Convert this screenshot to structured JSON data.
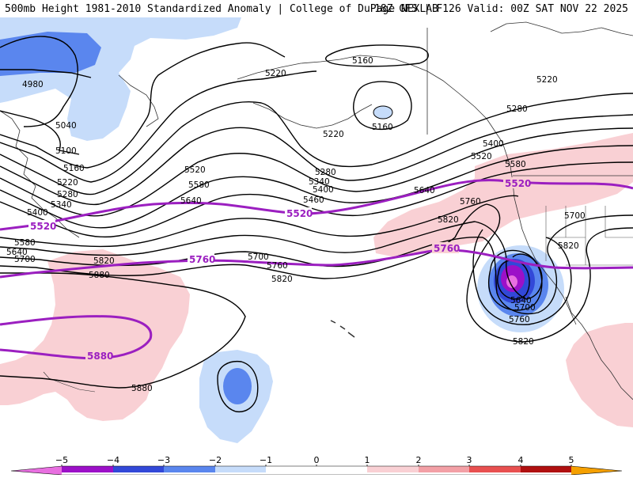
{
  "header": {
    "title": "500mb Height 1981-2010 Standardized Anomaly | College of DuPage NEXLAB",
    "model_info": "18Z GFS | F126 Valid: 00Z SAT NOV 22 2025"
  },
  "colors": {
    "neg5": "#e86fe0",
    "neg4": "#9c10c8",
    "neg3": "#3248d8",
    "neg2": "#5a86ee",
    "neg1": "#c6dcfa",
    "pos1": "#f9d0d4",
    "pos2": "#f3a0a6",
    "pos3": "#e85050",
    "pos4": "#b01010",
    "pos5": "#f5a000",
    "contour": "#000000",
    "highlight": "#9b1fc0"
  },
  "colorbar": {
    "ticks": [
      "−5",
      "−4",
      "−3",
      "−2",
      "−1",
      "0",
      "1",
      "2",
      "3",
      "4",
      "5"
    ]
  },
  "contour_labels": {
    "c4980": "4980",
    "c5040": "5040",
    "c5100": "5100",
    "c5160a": "5160",
    "c5160b": "5160",
    "c5160c": "5160",
    "c5220a": "5220",
    "c5220b": "5220",
    "c5220c": "5220",
    "c5220d": "5220",
    "c5280a": "5280",
    "c5280b": "5280",
    "c5280c": "5280",
    "c5340a": "5340",
    "c5340b": "5340",
    "c5400a": "5400",
    "c5400b": "5400",
    "c5400c": "5400",
    "c5460": "5460",
    "c5520a": "5520",
    "c5520b": "5520",
    "c5580a": "5580",
    "c5580b": "5580",
    "c5580c": "5580",
    "c5640a": "5640",
    "c5640b": "5640",
    "c5640c": "5640",
    "c5640d": "5640",
    "c5700a": "5700",
    "c5700b": "5700",
    "c5700c": "5700",
    "c5700d": "5700",
    "c5760a": "5760",
    "c5760b": "5760",
    "c5760c": "5760",
    "c5820a": "5820",
    "c5820b": "5820",
    "c5820c": "5820",
    "c5820d": "5820",
    "c5820e": "5820",
    "c5880a": "5880",
    "c5880b": "5880"
  },
  "highlight_labels": {
    "h5520a": "5520",
    "h5520b": "5520",
    "h5520c": "5520",
    "h5760a": "5760",
    "h5760b": "5760",
    "h5760c": "5760",
    "h5880": "5880"
  }
}
